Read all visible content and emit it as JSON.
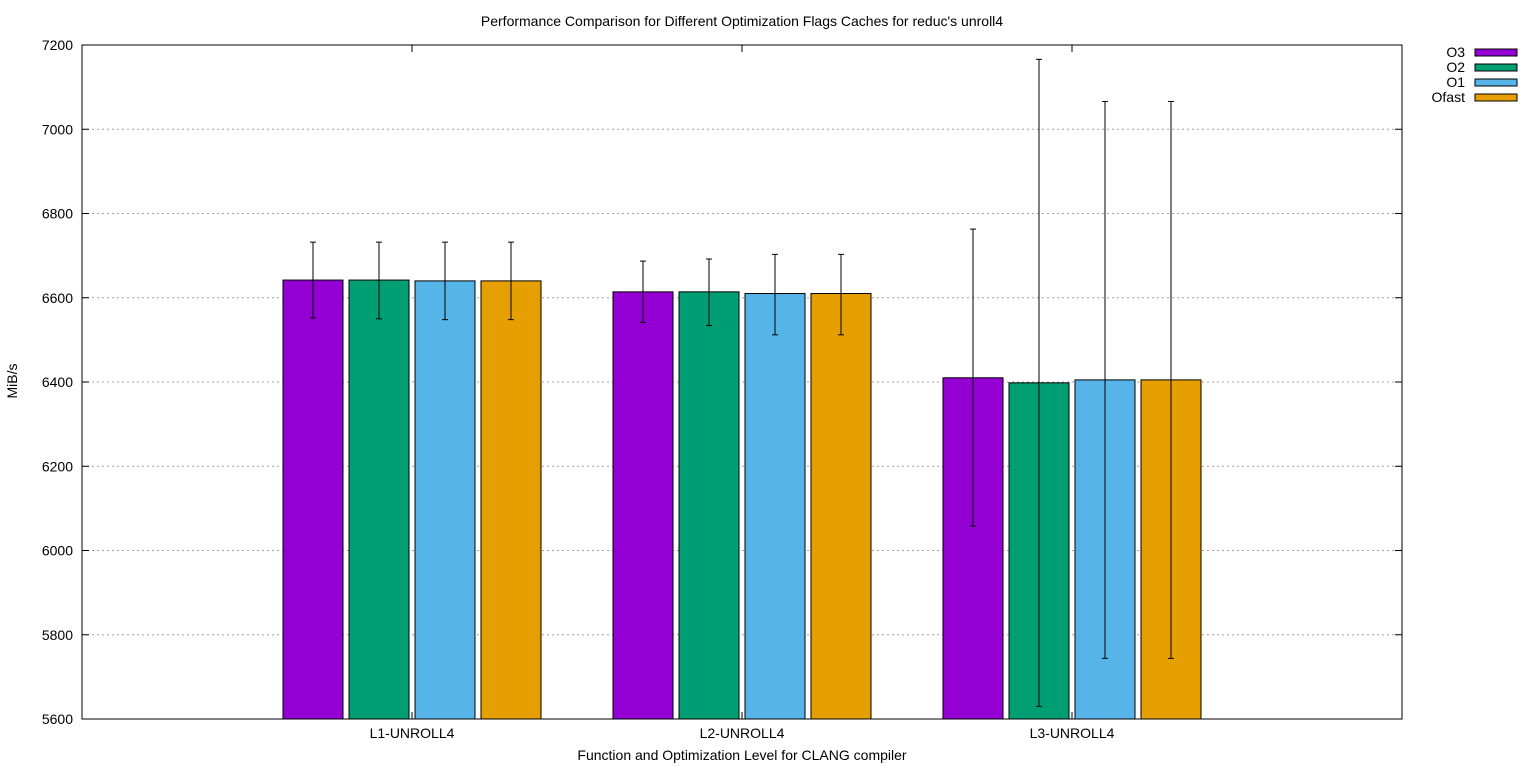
{
  "chart_data": {
    "type": "bar",
    "title": "Performance Comparison for Different Optimization Flags  Caches for reduc's unroll4",
    "xlabel": "Function and Optimization Level for CLANG compiler",
    "ylabel": "MiB/s",
    "ylim": [
      5600,
      7200
    ],
    "yticks": [
      5600,
      5800,
      6000,
      6200,
      6400,
      6600,
      6800,
      7000,
      7200
    ],
    "grid": true,
    "legend_position": "top-right, outside plot",
    "categories": [
      "L1-UNROLL4",
      "L2-UNROLL4",
      "L3-UNROLL4"
    ],
    "series": [
      {
        "name": "O3",
        "color": "#9400d3",
        "values": [
          6642,
          6614,
          6410
        ],
        "err_low": [
          6552,
          6541,
          6058
        ],
        "err_high": [
          6732,
          6687,
          6763
        ]
      },
      {
        "name": "O2",
        "color": "#009e73",
        "values": [
          6642,
          6614,
          6398
        ],
        "err_low": [
          6550,
          6534,
          5630
        ],
        "err_high": [
          6732,
          6692,
          7166
        ]
      },
      {
        "name": "O1",
        "color": "#56b4e9",
        "values": [
          6640,
          6610,
          6405
        ],
        "err_low": [
          6548,
          6512,
          5744
        ],
        "err_high": [
          6732,
          6703,
          7066
        ]
      },
      {
        "name": "Ofast",
        "color": "#e69f00",
        "values": [
          6640,
          6610,
          6405
        ],
        "err_low": [
          6548,
          6512,
          5744
        ],
        "err_high": [
          6732,
          6703,
          7066
        ]
      }
    ]
  }
}
